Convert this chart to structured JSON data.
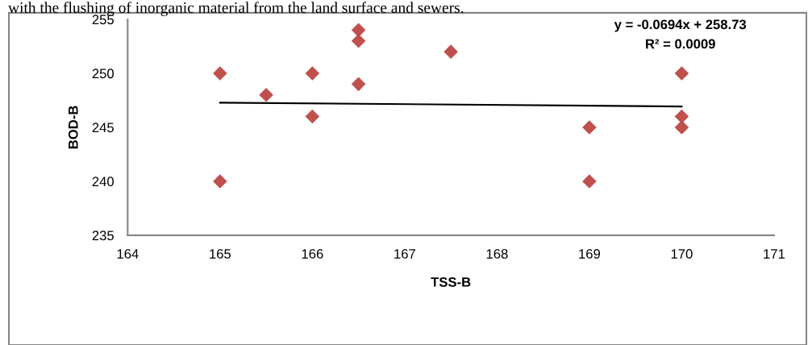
{
  "chart_data": {
    "type": "scatter",
    "xlabel": "TSS-B",
    "ylabel": "BOD-B",
    "marker": "diamond",
    "grid": false,
    "legend": false,
    "xlim": [
      164,
      171
    ],
    "xticks": [
      164,
      165,
      166,
      167,
      168,
      169,
      170,
      171
    ],
    "ylim": [
      235,
      255
    ],
    "yticks": [
      235,
      240,
      245,
      250,
      255
    ],
    "annotations": [
      "with the flushing of inorganic material from the land surface and sewers.",
      "y = -0.0694x + 258.73",
      "R² = 0.0009"
    ],
    "series": [
      {
        "color": "#c0504d",
        "x": [
          165,
          165,
          165.5,
          166,
          166,
          166.5,
          166.5,
          166.5,
          167.5,
          169,
          169,
          170,
          170,
          170
        ],
        "values": [
          250,
          240,
          248,
          250,
          246,
          254,
          253,
          249,
          252,
          245,
          240,
          250,
          246,
          245
        ]
      },
      {
        "type": "line",
        "color": "#000000",
        "marker": "none",
        "x": [
          165,
          170
        ],
        "values": [
          247.28,
          246.93
        ]
      }
    ]
  }
}
